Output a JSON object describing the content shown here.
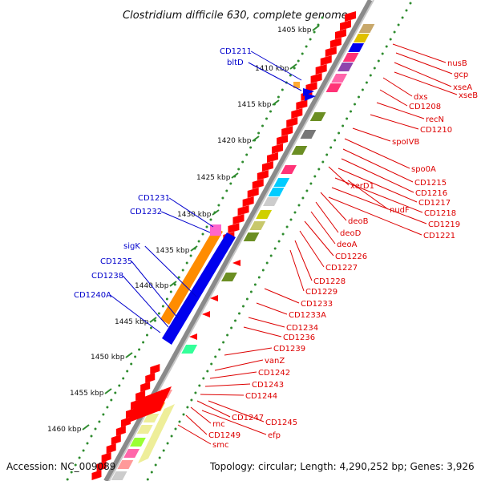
{
  "title": "Clostridium difficile 630, complete genome",
  "accession": "Accession: NC_009089",
  "summary": "Topology: circular; Length: 4,290,252 bp; Genes: 3,926",
  "colors": {
    "forward_label": "#0000cc",
    "reverse_label": "#dd0000",
    "backbone": "#8a8a8a",
    "ruler_dots": "#2e8b2e",
    "forward_long_gene": "#ff8c00",
    "forward_long_gene_2": "#0000ee"
  },
  "ruler_labels": [
    {
      "label": "1405 kbp",
      "kbp": 1405
    },
    {
      "label": "1410 kbp",
      "kbp": 1410
    },
    {
      "label": "1415 kbp",
      "kbp": 1415
    },
    {
      "label": "1420 kbp",
      "kbp": 1420
    },
    {
      "label": "1425 kbp",
      "kbp": 1425
    },
    {
      "label": "1430 kbp",
      "kbp": 1430
    },
    {
      "label": "1435 kbp",
      "kbp": 1435
    },
    {
      "label": "1440 kbp",
      "kbp": 1440
    },
    {
      "label": "1445 kbp",
      "kbp": 1445
    },
    {
      "label": "1450 kbp",
      "kbp": 1450
    },
    {
      "label": "1455 kbp",
      "kbp": 1455
    },
    {
      "label": "1460 kbp",
      "kbp": 1460
    }
  ],
  "forward_genes": [
    "CD1211",
    "bltD",
    "CD1231",
    "CD1232",
    "sigK",
    "CD1235",
    "CD1238",
    "CD1240A"
  ],
  "reverse_genes": [
    "nusB",
    "gcp",
    "xseA",
    "xseB",
    "dxs",
    "CD1208",
    "recN",
    "CD1210",
    "spoIVB",
    "spo0A",
    "CD1215",
    "CD1216",
    "CD1217",
    "CD1218",
    "CD1219",
    "CD1221",
    "nudF",
    "xerD1",
    "deoB",
    "deoD",
    "deoA",
    "CD1226",
    "CD1227",
    "CD1228",
    "CD1229",
    "CD1233",
    "CD1233A",
    "CD1234",
    "CD1236",
    "CD1239",
    "vanZ",
    "CD1242",
    "CD1243",
    "CD1244",
    "CD1245",
    "CD1247",
    "efp",
    "rnc",
    "CD1249",
    "smc"
  ]
}
